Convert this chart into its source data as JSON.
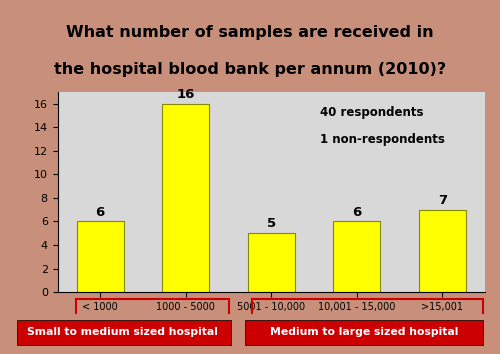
{
  "title_line1": "What number of samples are received in",
  "title_line2": "the hospital blood bank per annum (2010)?",
  "title_bg_color": "#80c000",
  "title_text_color": "#000000",
  "categories": [
    "< 1000",
    "1000 - 5000",
    "5001 - 10,000",
    "10,001 - 15,000",
    ">15,001"
  ],
  "values": [
    6,
    16,
    5,
    6,
    7
  ],
  "bar_color": "#ffff00",
  "bar_edge_color": "#888800",
  "chart_bg_color": "#d8d8d8",
  "ylim": [
    0,
    17
  ],
  "yticks": [
    0,
    2,
    4,
    6,
    8,
    10,
    12,
    14,
    16
  ],
  "legend_text1": "40 respondents",
  "legend_text2": "1 non-respondents",
  "legend_bg": "#aad4e0",
  "label1": "Small to medium sized hospital",
  "label2": "Medium to large sized hospital",
  "label_bg": "#cc0000",
  "label_text_color": "#ffffff",
  "outer_bg": "#d0a090",
  "fig_bg": "#c8907a"
}
